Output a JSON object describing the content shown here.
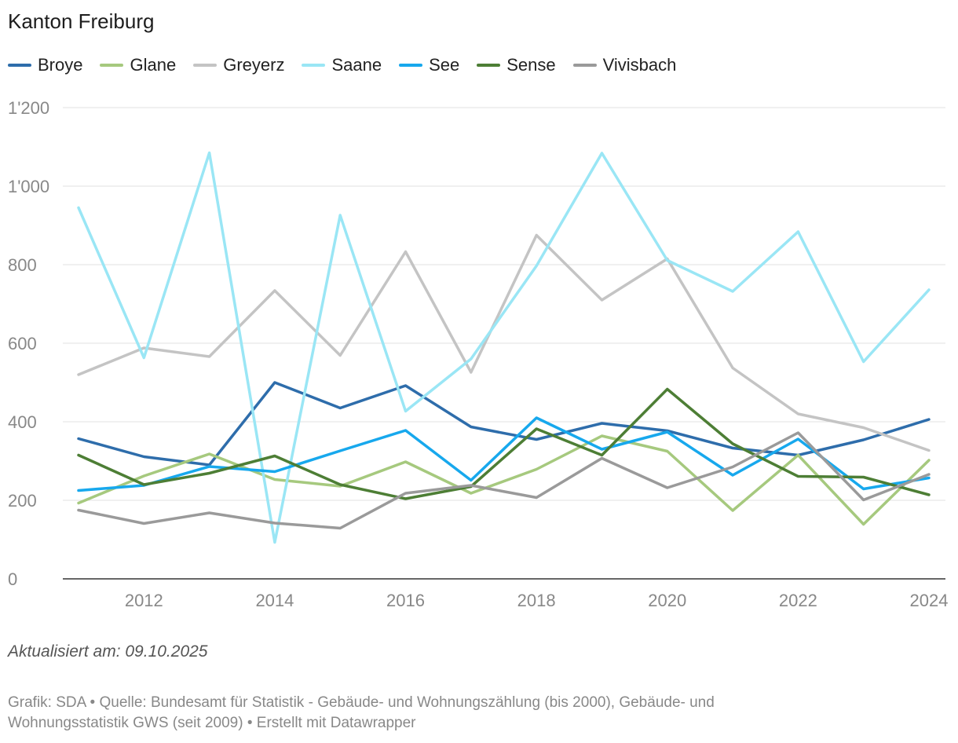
{
  "title": "Kanton Freiburg",
  "updated_label": "Aktualisiert am: 09.10.2025",
  "footer": {
    "credit": "Grafik: SDA",
    "source": "Quelle: Bundesamt für Statistik - Gebäude- und Wohnungszählung (bis 2000), Gebäude- und Wohnungsstatistik GWS (seit 2009) ",
    "tool": "Erstellt mit Datawrapper",
    "separator": "•"
  },
  "chart_data": {
    "type": "line",
    "title": "Kanton Freiburg",
    "xlabel": "",
    "ylabel": "",
    "x": [
      2011,
      2012,
      2013,
      2014,
      2015,
      2016,
      2017,
      2018,
      2019,
      2020,
      2021,
      2022,
      2023,
      2024
    ],
    "xlim": [
      2011,
      2024
    ],
    "ylim": [
      0,
      1200
    ],
    "x_ticks": [
      2012,
      2014,
      2016,
      2018,
      2020,
      2022,
      2024
    ],
    "y_ticks": [
      0,
      200,
      400,
      600,
      800,
      1000,
      1200
    ],
    "y_tick_labels": [
      "0",
      "200",
      "400",
      "600",
      "800",
      "1'000",
      "1'200"
    ],
    "grid": "horizontal",
    "legend_position": "top",
    "series": [
      {
        "name": "Broye",
        "color": "#2e6dab",
        "values": [
          357,
          311,
          290,
          500,
          435,
          492,
          387,
          355,
          396,
          377,
          333,
          315,
          354,
          406
        ]
      },
      {
        "name": "Glane",
        "color": "#a6c97e",
        "values": [
          193,
          262,
          318,
          253,
          236,
          298,
          218,
          279,
          364,
          325,
          174,
          315,
          139,
          302
        ]
      },
      {
        "name": "Greyerz",
        "color": "#c4c4c4",
        "values": [
          520,
          588,
          566,
          734,
          569,
          833,
          526,
          875,
          710,
          815,
          537,
          420,
          385,
          327
        ]
      },
      {
        "name": "Saane",
        "color": "#9ae6f5",
        "values": [
          945,
          563,
          1085,
          93,
          926,
          427,
          560,
          797,
          1084,
          811,
          732,
          884,
          553,
          736
        ]
      },
      {
        "name": "See",
        "color": "#17a8ed",
        "values": [
          225,
          238,
          286,
          273,
          326,
          378,
          251,
          410,
          330,
          374,
          264,
          356,
          229,
          257
        ]
      },
      {
        "name": "Sense",
        "color": "#4d7e35",
        "values": [
          315,
          240,
          269,
          313,
          240,
          204,
          235,
          382,
          315,
          483,
          344,
          261,
          259,
          214
        ]
      },
      {
        "name": "Vivisbach",
        "color": "#9a9a9a",
        "values": [
          175,
          141,
          168,
          142,
          129,
          218,
          238,
          207,
          307,
          232,
          285,
          372,
          201,
          266
        ]
      }
    ]
  }
}
